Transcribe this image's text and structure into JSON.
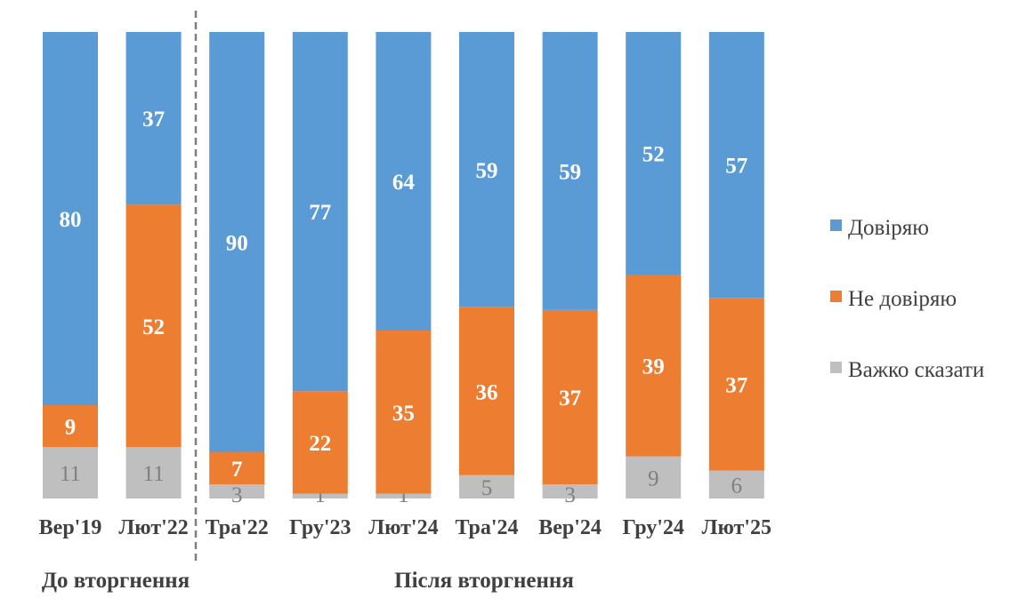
{
  "chart_data": {
    "type": "bar",
    "stacked": true,
    "categories": [
      "Вер'19",
      "Лют'22",
      "Тра'22",
      "Гру'23",
      "Лют'24",
      "Тра'24",
      "Вер'24",
      "Гру'24",
      "Лют'25"
    ],
    "series": [
      {
        "name": "Довіряю",
        "color": "#5b9bd5",
        "values": [
          80,
          37,
          90,
          77,
          64,
          59,
          59,
          52,
          57
        ]
      },
      {
        "name": "Не довіряю",
        "color": "#ed7d31",
        "values": [
          9,
          52,
          7,
          22,
          35,
          36,
          37,
          39,
          37
        ]
      },
      {
        "name": "Важко сказати",
        "color": "#bfbfbf",
        "values": [
          11,
          11,
          3,
          1,
          1,
          5,
          3,
          9,
          6
        ]
      }
    ],
    "stack_order": "bottom-to-top: Важко сказати, Не довіряю, Довіряю",
    "groups": [
      {
        "label": "До вторгнення",
        "categories": [
          "Вер'19",
          "Лют'22"
        ]
      },
      {
        "label": "Після вторгнення",
        "categories": [
          "Тра'22",
          "Гру'23",
          "Лют'24",
          "Тра'24",
          "Вер'24",
          "Гру'24",
          "Лют'25"
        ]
      }
    ],
    "divider": "dashed line between Лют'22 and Тра'22",
    "legend_position": "right",
    "title": "",
    "xlabel": "",
    "ylabel": "",
    "grid": false
  }
}
